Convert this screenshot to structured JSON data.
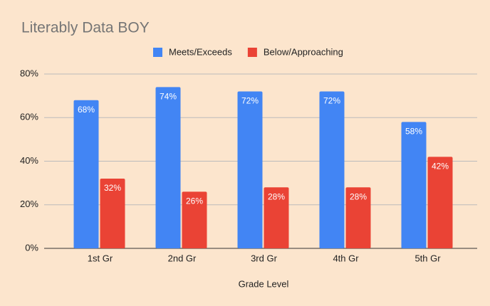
{
  "chart_data": {
    "type": "bar",
    "title": "Literably Data BOY",
    "x_label": "Grade Level",
    "categories": [
      "1st Gr",
      "2nd Gr",
      "3rd Gr",
      "4th Gr",
      "5th Gr"
    ],
    "series": [
      {
        "name": "Meets/Exceeds",
        "color": "#4285f4",
        "values": [
          68,
          74,
          72,
          72,
          58
        ],
        "value_labels": [
          "68%",
          "74%",
          "72%",
          "72%",
          "58%"
        ]
      },
      {
        "name": "Below/Approaching",
        "color": "#ea4335",
        "values": [
          32,
          26,
          28,
          28,
          42
        ],
        "value_labels": [
          "32%",
          "26%",
          "28%",
          "28%",
          "42%"
        ]
      }
    ],
    "ylim": [
      0,
      80
    ],
    "yticks": [
      {
        "value": 0,
        "label": "0%"
      },
      {
        "value": 20,
        "label": "20%"
      },
      {
        "value": 40,
        "label": "40%"
      },
      {
        "value": 60,
        "label": "60%"
      },
      {
        "value": 80,
        "label": "80%"
      }
    ],
    "grid": true,
    "legend": "top"
  }
}
